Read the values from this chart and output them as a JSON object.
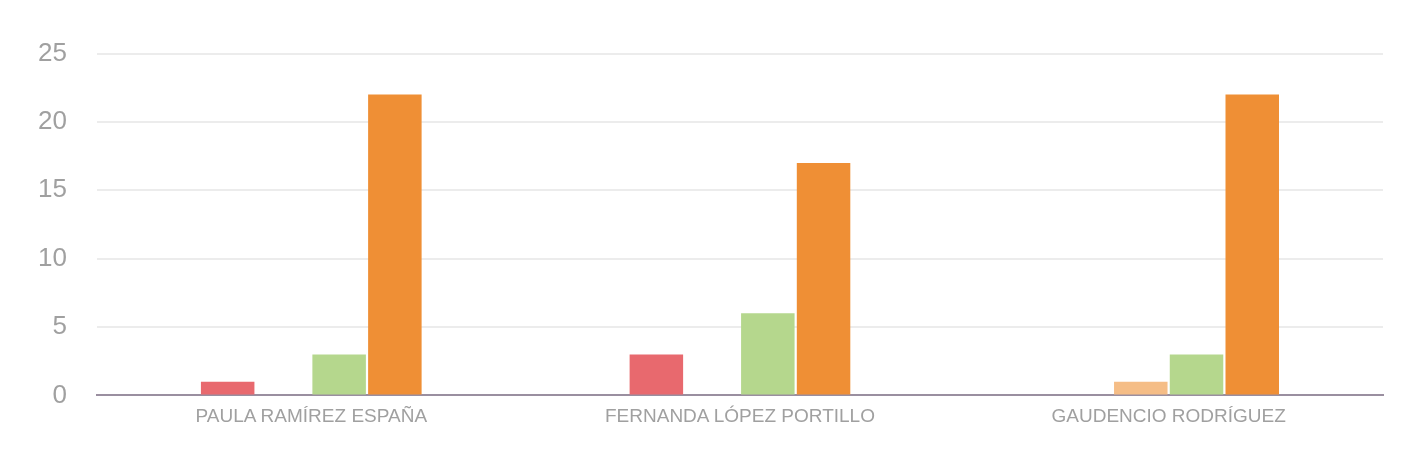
{
  "chart_data": {
    "type": "bar",
    "categories": [
      "PAULA RAMÍREZ ESPAÑA",
      "FERNANDA LÓPEZ PORTILLO",
      "GAUDENCIO RODRÍGUEZ"
    ],
    "series": [
      {
        "color": "#e8696e",
        "values": [
          1,
          3,
          0
        ]
      },
      {
        "color": "#f5bd86",
        "values": [
          0,
          0,
          1
        ]
      },
      {
        "color": "#b5d78d",
        "values": [
          3,
          6,
          3
        ]
      },
      {
        "color": "#ef8f35",
        "values": [
          22,
          17,
          22
        ]
      }
    ],
    "ylim": [
      0,
      25
    ],
    "yticks": [
      0,
      5,
      10,
      15,
      20,
      25
    ],
    "grid": "y",
    "legend": false
  }
}
